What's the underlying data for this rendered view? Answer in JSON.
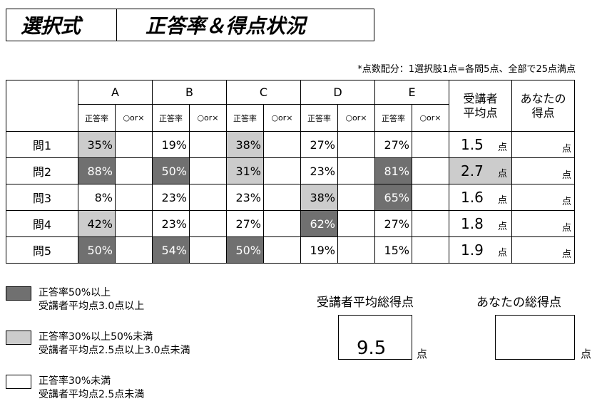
{
  "title": {
    "left": "選択式",
    "right": "正答率＆得点状況"
  },
  "note": "*点数配分：1選択肢1点=各問5点、全部で25点満点",
  "columns": {
    "choices": [
      "A",
      "B",
      "C",
      "D",
      "E"
    ],
    "sub_correct": "正答率",
    "sub_ox": "○or×",
    "avg_header": "受講者\n平均点",
    "you_header": "あなたの\n得点"
  },
  "rows": [
    {
      "label": "問1",
      "pcts": [
        "35%",
        "19%",
        "38%",
        "27%",
        "27%"
      ],
      "shade": [
        "light",
        "",
        "light",
        "",
        ""
      ],
      "avg": "1.5",
      "avg_shade": "",
      "unit": "点",
      "you_unit": "点"
    },
    {
      "label": "問2",
      "pcts": [
        "88%",
        "50%",
        "31%",
        "23%",
        "81%"
      ],
      "shade": [
        "dark",
        "dark",
        "light",
        "",
        "dark"
      ],
      "avg": "2.7",
      "avg_shade": "light",
      "unit": "点",
      "you_unit": "点"
    },
    {
      "label": "問3",
      "pcts": [
        "8%",
        "23%",
        "23%",
        "38%",
        "65%"
      ],
      "shade": [
        "",
        "",
        "",
        "light",
        "dark"
      ],
      "avg": "1.6",
      "avg_shade": "",
      "unit": "点",
      "you_unit": "点"
    },
    {
      "label": "問4",
      "pcts": [
        "42%",
        "23%",
        "27%",
        "62%",
        "27%"
      ],
      "shade": [
        "light",
        "",
        "",
        "dark",
        ""
      ],
      "avg": "1.8",
      "avg_shade": "",
      "unit": "点",
      "you_unit": "点"
    },
    {
      "label": "問5",
      "pcts": [
        "50%",
        "54%",
        "50%",
        "19%",
        "15%"
      ],
      "shade": [
        "dark",
        "dark",
        "dark",
        "",
        ""
      ],
      "avg": "1.9",
      "avg_shade": "",
      "unit": "点",
      "you_unit": "点"
    }
  ],
  "legend": [
    {
      "color": "#707070",
      "line1": "正答率50%以上",
      "line2": "受講者平均点3.0点以上"
    },
    {
      "color": "#cccccc",
      "line1": "正答率30%以上50%未満",
      "line2": "受講者平均点2.5点以上3.0点未満"
    },
    {
      "color": "#ffffff",
      "line1": "正答率30%未満",
      "line2": "受講者平均点2.5点未満"
    }
  ],
  "summary": {
    "avg_label": "受講者平均総得点",
    "avg_value": "9.5",
    "avg_unit": "点",
    "you_label": "あなたの総得点",
    "you_value": "",
    "you_unit": "点"
  }
}
